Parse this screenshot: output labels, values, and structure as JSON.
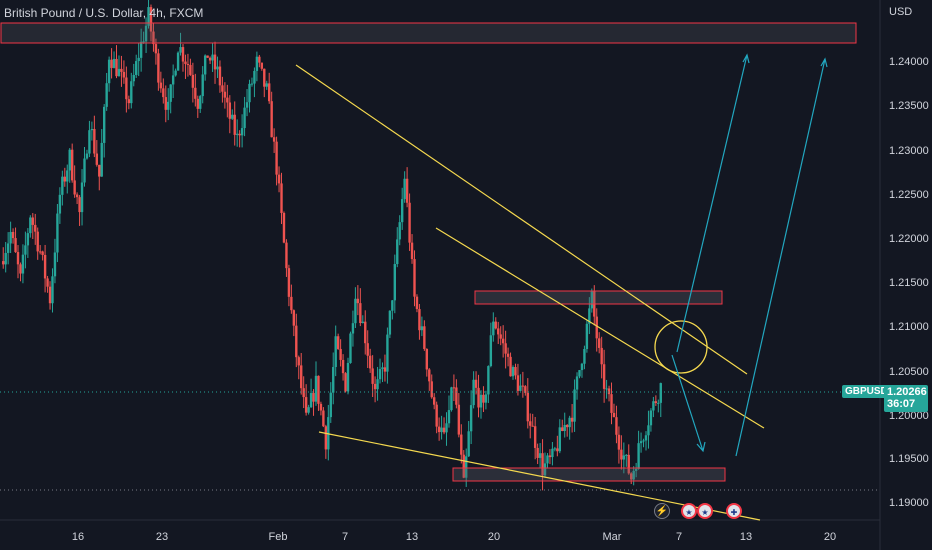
{
  "header": {
    "symbol_title": "British Pound / U.S. Dollar, 4h, FXCM",
    "currency": "USD"
  },
  "price_axis": {
    "labels": [
      "1.24000",
      "1.23500",
      "1.23000",
      "1.22500",
      "1.22000",
      "1.21500",
      "1.21000",
      "1.20500",
      "1.20000",
      "1.19500",
      "1.19000"
    ]
  },
  "time_axis": {
    "labels": [
      "16",
      "23",
      "Feb",
      "7",
      "13",
      "20",
      "Mar",
      "7",
      "13",
      "20"
    ]
  },
  "current_price": {
    "ticker": "GBPUSD",
    "price": "1.20266",
    "countdown": "36:07"
  },
  "colors": {
    "background": "#131722",
    "up": "#26a69a",
    "down": "#ef5350",
    "trendline": "#f5d94f",
    "arrow": "#22a7c0",
    "zone_border": "#f23645"
  },
  "event_icons": [
    "flash-icon",
    "us-flag-icon",
    "us-flag-icon",
    "uk-flag-icon"
  ],
  "chart_data": {
    "type": "candlestick",
    "ylim": [
      1.1885,
      1.2432
    ],
    "x_ticks": [
      "16",
      "23",
      "Feb",
      "7",
      "13",
      "20",
      "Mar",
      "7",
      "13",
      "20"
    ],
    "y_ticks": [
      1.24,
      1.235,
      1.23,
      1.225,
      1.22,
      1.215,
      1.21,
      1.205,
      1.2,
      1.195,
      1.19
    ],
    "path": [
      1.216,
      1.219,
      1.214,
      1.221,
      1.217,
      1.212,
      1.223,
      1.227,
      1.221,
      1.231,
      1.225,
      1.238,
      1.236,
      1.233,
      1.238,
      1.242,
      1.236,
      1.232,
      1.239,
      1.237,
      1.233,
      1.238,
      1.236,
      1.232,
      1.229,
      1.233,
      1.237,
      1.234,
      1.226,
      1.215,
      1.206,
      1.199,
      1.203,
      1.197,
      1.207,
      1.203,
      1.213,
      1.208,
      1.202,
      1.205,
      1.215,
      1.225,
      1.212,
      1.207,
      1.2,
      1.197,
      1.203,
      1.192,
      1.203,
      1.2,
      1.21,
      1.207,
      1.204,
      1.202,
      1.198,
      1.194,
      1.195,
      1.198,
      1.2,
      1.206,
      1.212,
      1.204,
      1.2,
      1.196,
      1.193,
      1.197,
      1.2,
      1.2027
    ],
    "current_price": 1.20266,
    "resistance_zone": [
      1.2416,
      1.2438
    ],
    "supply_zone": [
      1.2125,
      1.214
    ],
    "demand_zone": [
      1.1928,
      1.1943
    ]
  }
}
